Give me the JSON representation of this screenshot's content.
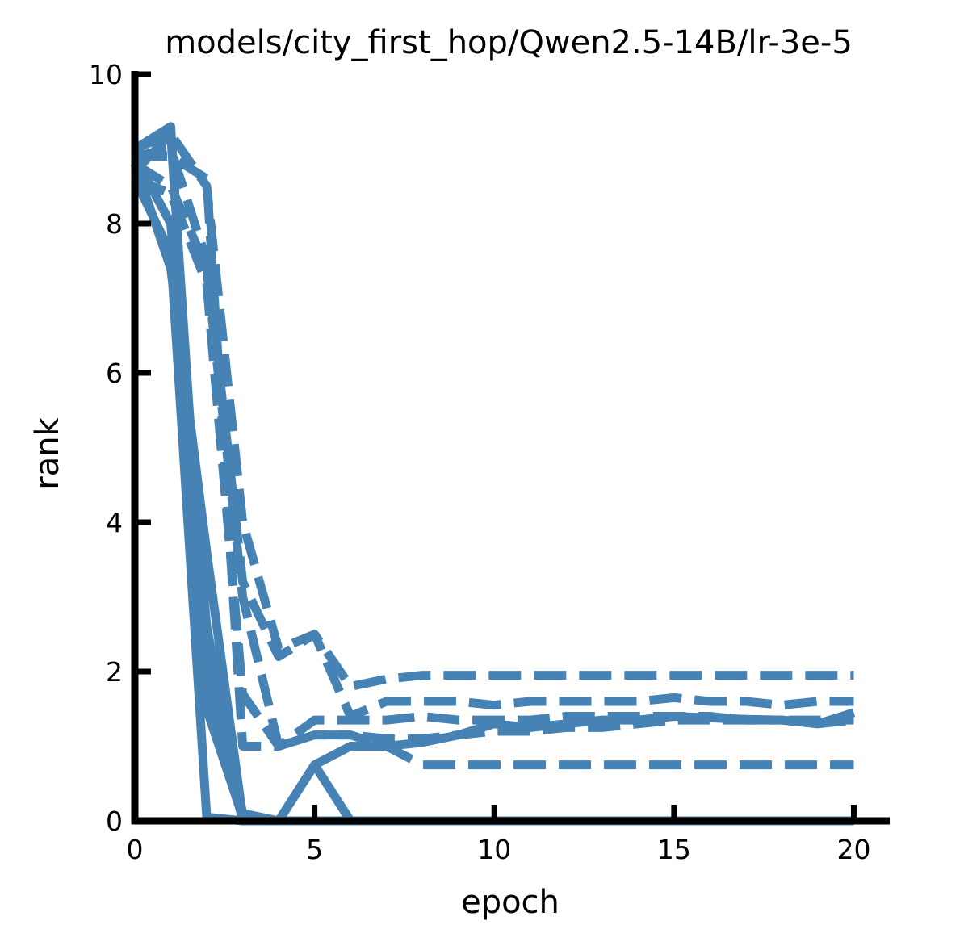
{
  "chart_data": {
    "type": "line",
    "title": "models/city_first_hop/Qwen2.5-14B/lr-3e-5",
    "xlabel": "epoch",
    "ylabel": "rank",
    "xlim": [
      0,
      21
    ],
    "ylim": [
      0,
      10
    ],
    "x_ticks": [
      0,
      5,
      10,
      15,
      20
    ],
    "y_ticks": [
      0,
      2,
      4,
      6,
      8,
      10
    ],
    "x_tick_labels": [
      "0",
      "5",
      "10",
      "15",
      "20"
    ],
    "y_tick_labels": [
      "0",
      "2",
      "4",
      "6",
      "8",
      "10"
    ],
    "grid": false,
    "legend": "none",
    "line_color": "#4682b4",
    "axis_color": "#000000",
    "series": [
      {
        "style": "solid",
        "points": [
          [
            0,
            8.6
          ],
          [
            1,
            7.6
          ],
          [
            2,
            0.05
          ],
          [
            3,
            0
          ],
          [
            4,
            0
          ],
          [
            5,
            0
          ],
          [
            6,
            0
          ],
          [
            7,
            0
          ],
          [
            8,
            0
          ],
          [
            9,
            0
          ],
          [
            10,
            0
          ],
          [
            11,
            0
          ],
          [
            12,
            0
          ],
          [
            13,
            0
          ],
          [
            14,
            0
          ],
          [
            15,
            0
          ],
          [
            16,
            0
          ],
          [
            17,
            0
          ],
          [
            18,
            0
          ],
          [
            19,
            0
          ],
          [
            20,
            0
          ]
        ]
      },
      {
        "style": "solid",
        "points": [
          [
            0,
            8.7
          ],
          [
            1,
            9.2
          ],
          [
            2,
            2.0
          ],
          [
            3,
            0
          ],
          [
            4,
            0
          ],
          [
            5,
            0.75
          ],
          [
            6,
            0
          ],
          [
            7,
            0
          ],
          [
            8,
            0
          ],
          [
            9,
            0
          ],
          [
            10,
            0
          ],
          [
            11,
            0
          ],
          [
            12,
            0
          ],
          [
            13,
            0
          ],
          [
            14,
            0
          ],
          [
            15,
            0
          ],
          [
            16,
            0
          ],
          [
            17,
            0
          ],
          [
            18,
            0
          ],
          [
            19,
            0
          ],
          [
            20,
            0
          ]
        ]
      },
      {
        "style": "solid",
        "points": [
          [
            0,
            8.9
          ],
          [
            1,
            8.0
          ],
          [
            2,
            2.6
          ],
          [
            3,
            0.1
          ],
          [
            4,
            0
          ],
          [
            5,
            0
          ],
          [
            6,
            0
          ],
          [
            7,
            0
          ],
          [
            8,
            0
          ],
          [
            9,
            0
          ],
          [
            10,
            0
          ],
          [
            11,
            0
          ],
          [
            12,
            0
          ],
          [
            13,
            0
          ],
          [
            14,
            0
          ],
          [
            15,
            0
          ],
          [
            16,
            0
          ],
          [
            17,
            0
          ],
          [
            18,
            0
          ],
          [
            19,
            0
          ],
          [
            20,
            0
          ]
        ]
      },
      {
        "style": "solid",
        "points": [
          [
            0,
            8.8
          ],
          [
            1,
            7.4
          ],
          [
            2,
            3.6
          ],
          [
            3,
            0.05
          ],
          [
            4,
            0
          ],
          [
            5,
            0
          ],
          [
            6,
            0
          ],
          [
            7,
            0
          ],
          [
            8,
            0
          ],
          [
            9,
            0
          ],
          [
            10,
            0
          ],
          [
            11,
            0
          ],
          [
            12,
            0
          ],
          [
            13,
            0
          ],
          [
            14,
            0
          ],
          [
            15,
            0
          ],
          [
            16,
            0
          ],
          [
            17,
            0
          ],
          [
            18,
            0
          ],
          [
            19,
            0
          ],
          [
            20,
            0
          ]
        ]
      },
      {
        "style": "solid",
        "points": [
          [
            0,
            9.0
          ],
          [
            1,
            9.3
          ],
          [
            2,
            1.5
          ],
          [
            3,
            0.05
          ],
          [
            4,
            0
          ],
          [
            5,
            0.75
          ],
          [
            6,
            1.0
          ],
          [
            7,
            1.0
          ],
          [
            8,
            1.05
          ],
          [
            9,
            1.15
          ],
          [
            10,
            1.3
          ],
          [
            11,
            1.25
          ],
          [
            12,
            1.3
          ],
          [
            13,
            1.35
          ],
          [
            14,
            1.35
          ],
          [
            15,
            1.4
          ],
          [
            16,
            1.38
          ],
          [
            17,
            1.36
          ],
          [
            18,
            1.35
          ],
          [
            19,
            1.3
          ],
          [
            20,
            1.45
          ]
        ]
      },
      {
        "style": "dashed",
        "points": [
          [
            0,
            9.0
          ],
          [
            1,
            9.2
          ],
          [
            2,
            8.5
          ],
          [
            3,
            4.0
          ],
          [
            4,
            2.3
          ],
          [
            5,
            2.5
          ],
          [
            6,
            1.8
          ],
          [
            7,
            1.9
          ],
          [
            8,
            1.95
          ],
          [
            9,
            1.95
          ],
          [
            10,
            1.95
          ],
          [
            11,
            1.95
          ],
          [
            12,
            1.95
          ],
          [
            13,
            1.95
          ],
          [
            14,
            1.95
          ],
          [
            15,
            1.95
          ],
          [
            16,
            1.95
          ],
          [
            17,
            1.95
          ],
          [
            18,
            1.95
          ],
          [
            19,
            1.95
          ],
          [
            20,
            1.95
          ]
        ]
      },
      {
        "style": "dashed",
        "points": [
          [
            0,
            8.8
          ],
          [
            1,
            8.5
          ],
          [
            2,
            7.4
          ],
          [
            3,
            3.0
          ],
          [
            4,
            1.0
          ],
          [
            5,
            1.15
          ],
          [
            6,
            1.15
          ],
          [
            7,
            1.0
          ],
          [
            8,
            0.75
          ],
          [
            9,
            0.75
          ],
          [
            10,
            0.75
          ],
          [
            11,
            0.75
          ],
          [
            12,
            0.75
          ],
          [
            13,
            0.75
          ],
          [
            14,
            0.75
          ],
          [
            15,
            0.75
          ],
          [
            16,
            0.75
          ],
          [
            17,
            0.75
          ],
          [
            18,
            0.75
          ],
          [
            19,
            0.75
          ],
          [
            20,
            0.75
          ]
        ]
      },
      {
        "style": "dashed",
        "points": [
          [
            0,
            8.9
          ],
          [
            1,
            9.0
          ],
          [
            2,
            7.5
          ],
          [
            3,
            3.2
          ],
          [
            4,
            2.2
          ],
          [
            5,
            2.5
          ],
          [
            6,
            1.4
          ],
          [
            7,
            1.6
          ],
          [
            8,
            1.6
          ],
          [
            9,
            1.6
          ],
          [
            10,
            1.55
          ],
          [
            11,
            1.6
          ],
          [
            12,
            1.6
          ],
          [
            13,
            1.6
          ],
          [
            14,
            1.6
          ],
          [
            15,
            1.65
          ],
          [
            16,
            1.6
          ],
          [
            17,
            1.6
          ],
          [
            18,
            1.55
          ],
          [
            19,
            1.6
          ],
          [
            20,
            1.6
          ]
        ]
      },
      {
        "style": "dashed",
        "points": [
          [
            0,
            8.6
          ],
          [
            1,
            8.4
          ],
          [
            2,
            7.2
          ],
          [
            3,
            1.7
          ],
          [
            4,
            1.0
          ],
          [
            5,
            1.35
          ],
          [
            6,
            1.35
          ],
          [
            7,
            1.35
          ],
          [
            8,
            1.4
          ],
          [
            9,
            1.35
          ],
          [
            10,
            1.35
          ],
          [
            11,
            1.35
          ],
          [
            12,
            1.4
          ],
          [
            13,
            1.4
          ],
          [
            14,
            1.4
          ],
          [
            15,
            1.4
          ],
          [
            16,
            1.4
          ],
          [
            17,
            1.35
          ],
          [
            18,
            1.35
          ],
          [
            19,
            1.35
          ],
          [
            20,
            1.35
          ]
        ]
      },
      {
        "style": "dashed",
        "points": [
          [
            0,
            8.9
          ],
          [
            1,
            8.9
          ],
          [
            2,
            8.6
          ],
          [
            3,
            1.0
          ],
          [
            4,
            1.0
          ],
          [
            5,
            1.15
          ],
          [
            6,
            1.15
          ],
          [
            7,
            1.1
          ],
          [
            8,
            1.1
          ],
          [
            9,
            1.15
          ],
          [
            10,
            1.2
          ],
          [
            11,
            1.2
          ],
          [
            12,
            1.25
          ],
          [
            13,
            1.25
          ],
          [
            14,
            1.3
          ],
          [
            15,
            1.35
          ],
          [
            16,
            1.35
          ],
          [
            17,
            1.35
          ],
          [
            18,
            1.35
          ],
          [
            19,
            1.3
          ],
          [
            20,
            1.35
          ]
        ]
      }
    ]
  }
}
